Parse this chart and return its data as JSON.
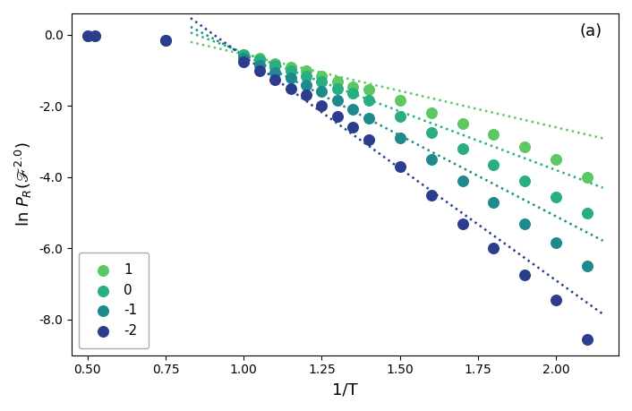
{
  "title": "(a)",
  "xlabel": "1/T",
  "ylabel": "ln $P_R(\\mathscr{F}^{2.0})$",
  "xlim": [
    0.45,
    2.2
  ],
  "ylim": [
    -9.0,
    0.6
  ],
  "series": [
    {
      "label": "1",
      "color": "#5bc863",
      "scatter_x": [
        0.5,
        0.525,
        1.0,
        1.05,
        1.1,
        1.15,
        1.2,
        1.25,
        1.3,
        1.35,
        1.4,
        1.5,
        1.6,
        1.7,
        1.8,
        1.9,
        2.0,
        2.1
      ],
      "scatter_y": [
        -0.03,
        -0.03,
        -0.55,
        -0.65,
        -0.8,
        -0.9,
        -1.0,
        -1.15,
        -1.3,
        -1.45,
        -1.55,
        -1.85,
        -2.2,
        -2.5,
        -2.8,
        -3.15,
        -3.5,
        -4.0
      ],
      "fit_x": [
        0.83,
        2.15
      ],
      "fit_slope": -2.05,
      "fit_intercept": 1.5
    },
    {
      "label": "0",
      "color": "#28ae80",
      "scatter_x": [
        1.0,
        1.05,
        1.1,
        1.15,
        1.2,
        1.25,
        1.3,
        1.35,
        1.4,
        1.5,
        1.6,
        1.7,
        1.8,
        1.9,
        2.0,
        2.1
      ],
      "scatter_y": [
        -0.55,
        -0.7,
        -0.85,
        -1.0,
        -1.15,
        -1.3,
        -1.5,
        -1.65,
        -1.85,
        -2.3,
        -2.75,
        -3.2,
        -3.65,
        -4.1,
        -4.55,
        -5.0
      ],
      "fit_x": [
        0.83,
        2.15
      ],
      "fit_slope": -3.3,
      "fit_intercept": 2.8
    },
    {
      "label": "-1",
      "color": "#1f8a8c",
      "scatter_x": [
        0.75,
        1.0,
        1.05,
        1.1,
        1.15,
        1.2,
        1.25,
        1.3,
        1.35,
        1.4,
        1.5,
        1.6,
        1.7,
        1.8,
        1.9,
        2.0,
        2.1
      ],
      "scatter_y": [
        -0.15,
        -0.65,
        -0.85,
        -1.05,
        -1.2,
        -1.4,
        -1.6,
        -1.85,
        -2.1,
        -2.35,
        -2.9,
        -3.5,
        -4.1,
        -4.7,
        -5.3,
        -5.85,
        -6.5
      ],
      "fit_x": [
        0.83,
        2.15
      ],
      "fit_slope": -4.55,
      "fit_intercept": 4.0
    },
    {
      "label": "-2",
      "color": "#2d3d8e",
      "scatter_x": [
        0.5,
        0.525,
        0.75,
        1.0,
        1.05,
        1.1,
        1.15,
        1.2,
        1.25,
        1.3,
        1.35,
        1.4,
        1.5,
        1.6,
        1.7,
        1.8,
        1.9,
        2.0,
        2.1
      ],
      "scatter_y": [
        -0.03,
        -0.03,
        -0.15,
        -0.75,
        -1.0,
        -1.25,
        -1.5,
        -1.7,
        -2.0,
        -2.3,
        -2.6,
        -2.95,
        -3.7,
        -4.5,
        -5.3,
        -6.0,
        -6.75,
        -7.45,
        -8.55
      ],
      "fit_x": [
        0.83,
        2.15
      ],
      "fit_slope": -6.3,
      "fit_intercept": 5.7
    }
  ],
  "xticks": [
    0.5,
    0.75,
    1.0,
    1.25,
    1.5,
    1.75,
    2.0
  ],
  "yticks": [
    0.0,
    -2.0,
    -4.0,
    -6.0,
    -8.0
  ],
  "scatter_size": 70,
  "legend_loc": "lower left",
  "background_color": "#ffffff"
}
